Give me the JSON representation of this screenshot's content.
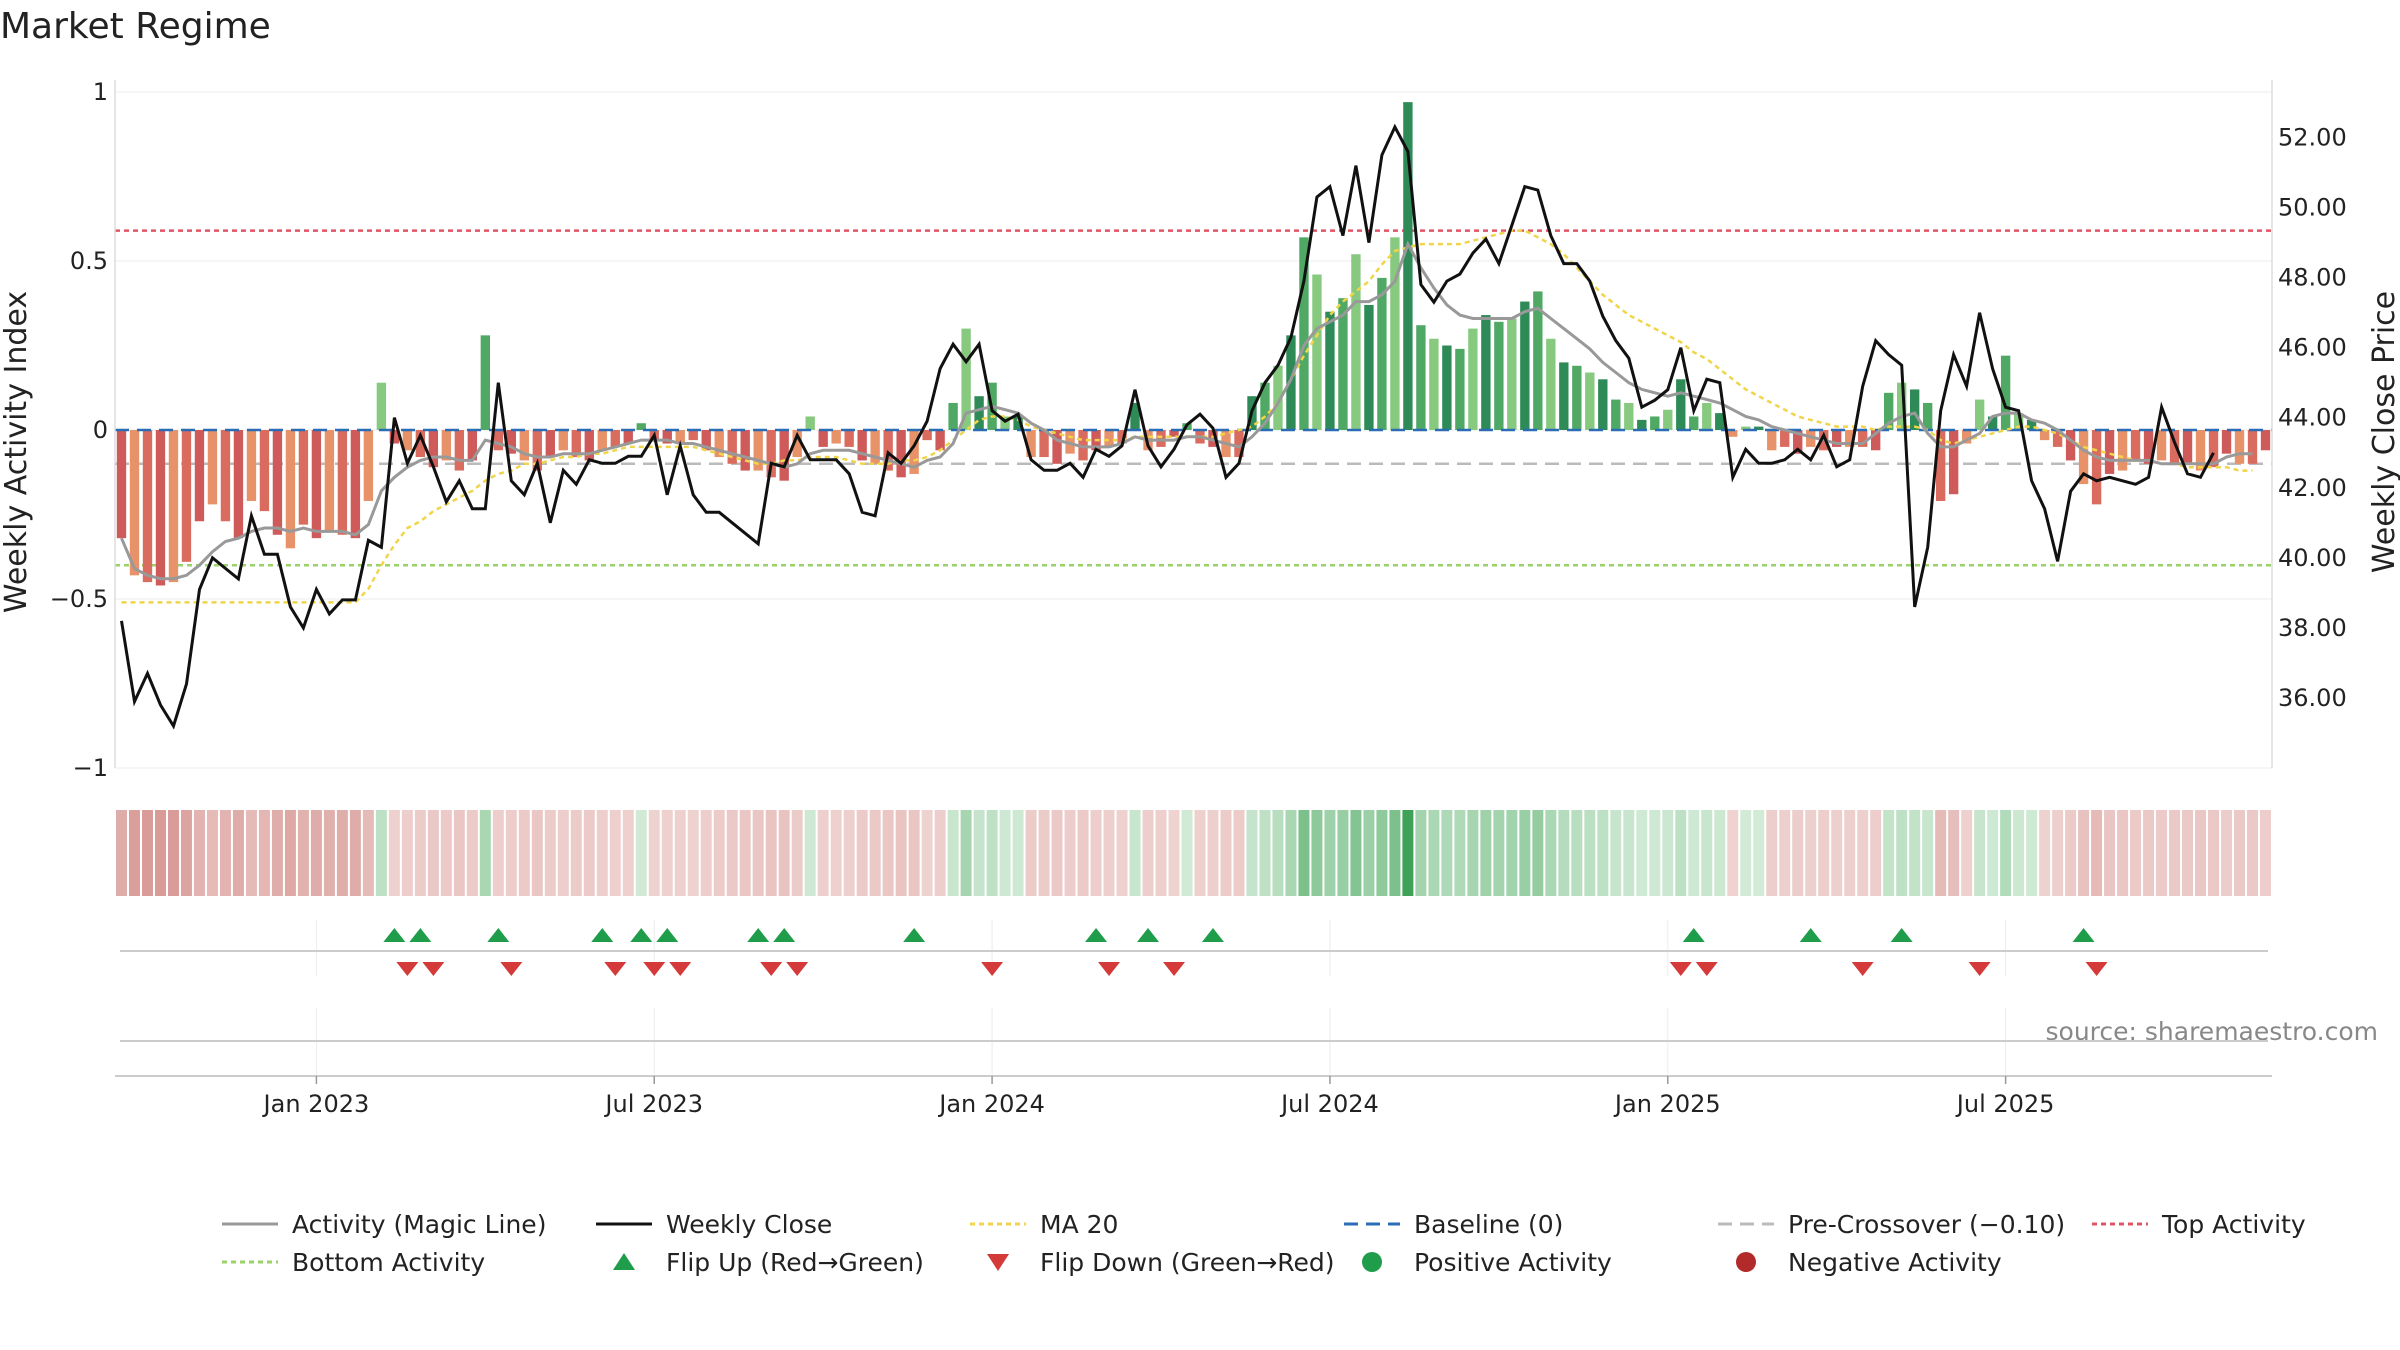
{
  "chart_data": {
    "type": "bar",
    "title": "Market Regime",
    "ylabel": "Weekly Activity Index",
    "y2label": "Weekly Close Price",
    "source": "source: sharemaestro.com",
    "ylim": [
      -1,
      1
    ],
    "y2lim": [
      34,
      53.3
    ],
    "y_ticks": [
      {
        "v": 1,
        "label": "1"
      },
      {
        "v": 0.5,
        "label": "0.5"
      },
      {
        "v": 0,
        "label": "0"
      },
      {
        "v": -0.5,
        "label": "−0.5"
      },
      {
        "v": -1,
        "label": "−1"
      }
    ],
    "y2_ticks": [
      {
        "v": 52,
        "label": "52.00"
      },
      {
        "v": 50,
        "label": "50.00"
      },
      {
        "v": 48,
        "label": "48.00"
      },
      {
        "v": 46,
        "label": "46.00"
      },
      {
        "v": 44,
        "label": "44.00"
      },
      {
        "v": 42,
        "label": "42.00"
      },
      {
        "v": 40,
        "label": "40.00"
      },
      {
        "v": 38,
        "label": "38.00"
      },
      {
        "v": 36,
        "label": "36.00"
      }
    ],
    "x_ticks": [
      {
        "i": 15,
        "label": "Jan 2023"
      },
      {
        "i": 41,
        "label": "Jul 2023"
      },
      {
        "i": 67,
        "label": "Jan 2024"
      },
      {
        "i": 93,
        "label": "Jul 2024"
      },
      {
        "i": 119,
        "label": "Jan 2025"
      },
      {
        "i": 145,
        "label": "Jul 2025"
      }
    ],
    "reference_lines": {
      "top": 0.59,
      "bottom": -0.4,
      "pre_crossover": -0.1,
      "baseline": 0
    },
    "activity": [
      -0.32,
      -0.43,
      -0.45,
      -0.46,
      -0.45,
      -0.39,
      -0.27,
      -0.22,
      -0.27,
      -0.32,
      -0.21,
      -0.24,
      -0.31,
      -0.35,
      -0.28,
      -0.32,
      -0.3,
      -0.31,
      -0.32,
      -0.21,
      0.14,
      -0.04,
      -0.06,
      -0.08,
      -0.11,
      -0.09,
      -0.12,
      -0.09,
      0.28,
      -0.06,
      -0.07,
      -0.09,
      -0.12,
      -0.08,
      -0.06,
      -0.08,
      -0.09,
      -0.06,
      -0.05,
      -0.04,
      0.02,
      -0.03,
      -0.04,
      -0.04,
      -0.03,
      -0.06,
      -0.08,
      -0.1,
      -0.12,
      -0.12,
      -0.14,
      -0.15,
      -0.08,
      0.04,
      -0.05,
      -0.04,
      -0.05,
      -0.09,
      -0.1,
      -0.12,
      -0.14,
      -0.13,
      -0.03,
      -0.06,
      0.08,
      0.3,
      0.1,
      0.14,
      0.04,
      0.04,
      -0.08,
      -0.08,
      -0.1,
      -0.07,
      -0.09,
      -0.06,
      -0.05,
      -0.04,
      0.08,
      -0.06,
      -0.05,
      -0.02,
      0.02,
      -0.04,
      -0.05,
      -0.08,
      -0.08,
      0.1,
      0.14,
      0.19,
      0.28,
      0.57,
      0.46,
      0.35,
      0.39,
      0.52,
      0.37,
      0.45,
      0.57,
      0.97,
      0.31,
      0.27,
      0.25,
      0.24,
      0.3,
      0.34,
      0.32,
      0.33,
      0.38,
      0.41,
      0.27,
      0.2,
      0.19,
      0.17,
      0.15,
      0.09,
      0.08,
      0.03,
      0.04,
      0.06,
      0.15,
      0.04,
      0.08,
      0.05,
      -0.02,
      0.01,
      0.01,
      -0.06,
      -0.05,
      -0.07,
      -0.05,
      -0.06,
      -0.05,
      -0.05,
      -0.05,
      -0.06,
      0.11,
      0.14,
      0.12,
      0.08,
      -0.21,
      -0.19,
      -0.04,
      0.09,
      0.04,
      0.22,
      0.05,
      0.03,
      -0.03,
      -0.05,
      -0.09,
      -0.16,
      -0.22,
      -0.13,
      -0.12,
      -0.09,
      -0.1,
      -0.09,
      -0.1,
      -0.1,
      -0.12,
      -0.11,
      -0.07,
      -0.1,
      -0.1,
      -0.06
    ],
    "magic_line": [
      -0.32,
      -0.41,
      -0.43,
      -0.44,
      -0.44,
      -0.43,
      -0.4,
      -0.36,
      -0.33,
      -0.32,
      -0.3,
      -0.29,
      -0.29,
      -0.3,
      -0.29,
      -0.3,
      -0.3,
      -0.3,
      -0.31,
      -0.28,
      -0.18,
      -0.14,
      -0.11,
      -0.09,
      -0.08,
      -0.08,
      -0.09,
      -0.09,
      -0.03,
      -0.04,
      -0.05,
      -0.07,
      -0.08,
      -0.08,
      -0.07,
      -0.07,
      -0.07,
      -0.06,
      -0.05,
      -0.04,
      -0.03,
      -0.03,
      -0.03,
      -0.04,
      -0.04,
      -0.05,
      -0.06,
      -0.07,
      -0.08,
      -0.09,
      -0.1,
      -0.11,
      -0.1,
      -0.07,
      -0.06,
      -0.06,
      -0.06,
      -0.07,
      -0.08,
      -0.09,
      -0.1,
      -0.11,
      -0.09,
      -0.08,
      -0.04,
      0.05,
      0.06,
      0.07,
      0.06,
      0.05,
      0.02,
      0,
      -0.03,
      -0.04,
      -0.05,
      -0.05,
      -0.05,
      -0.04,
      -0.02,
      -0.03,
      -0.03,
      -0.03,
      -0.02,
      -0.02,
      -0.03,
      -0.04,
      -0.05,
      -0.02,
      0.02,
      0.08,
      0.15,
      0.25,
      0.3,
      0.32,
      0.34,
      0.38,
      0.38,
      0.4,
      0.44,
      0.55,
      0.48,
      0.42,
      0.37,
      0.34,
      0.33,
      0.33,
      0.33,
      0.33,
      0.35,
      0.36,
      0.33,
      0.3,
      0.27,
      0.24,
      0.2,
      0.17,
      0.14,
      0.12,
      0.11,
      0.1,
      0.11,
      0.1,
      0.09,
      0.08,
      0.06,
      0.04,
      0.03,
      0.01,
      0,
      -0.01,
      -0.02,
      -0.03,
      -0.04,
      -0.04,
      -0.04,
      -0.01,
      0.02,
      0.04,
      0.05,
      -0.01,
      -0.05,
      -0.05,
      -0.03,
      -0.01,
      0.04,
      0.05,
      0.05,
      0.03,
      0.02,
      0,
      -0.03,
      -0.06,
      -0.08,
      -0.09,
      -0.09,
      -0.09,
      -0.09,
      -0.1,
      -0.1,
      -0.1,
      -0.1,
      -0.1,
      -0.08,
      -0.07,
      -0.07
    ],
    "ma20": [
      -0.51,
      -0.51,
      -0.51,
      -0.51,
      -0.51,
      -0.51,
      -0.51,
      -0.51,
      -0.51,
      -0.51,
      -0.51,
      -0.51,
      -0.51,
      -0.51,
      -0.51,
      -0.51,
      -0.51,
      -0.51,
      -0.51,
      -0.47,
      -0.4,
      -0.34,
      -0.29,
      -0.27,
      -0.24,
      -0.22,
      -0.2,
      -0.18,
      -0.15,
      -0.13,
      -0.12,
      -0.1,
      -0.1,
      -0.09,
      -0.08,
      -0.08,
      -0.07,
      -0.07,
      -0.06,
      -0.05,
      -0.05,
      -0.05,
      -0.05,
      -0.05,
      -0.05,
      -0.06,
      -0.07,
      -0.08,
      -0.09,
      -0.1,
      -0.1,
      -0.09,
      -0.09,
      -0.08,
      -0.08,
      -0.08,
      -0.09,
      -0.1,
      -0.1,
      -0.1,
      -0.09,
      -0.09,
      -0.08,
      -0.06,
      -0.03,
      0,
      0.03,
      0.04,
      0.04,
      0.03,
      0.01,
      0,
      -0.01,
      -0.02,
      -0.03,
      -0.03,
      -0.03,
      -0.03,
      -0.02,
      -0.02,
      -0.02,
      -0.02,
      -0.02,
      -0.02,
      -0.02,
      -0.01,
      0,
      0.01,
      0.04,
      0.08,
      0.15,
      0.22,
      0.28,
      0.34,
      0.38,
      0.41,
      0.44,
      0.49,
      0.53,
      0.54,
      0.55,
      0.55,
      0.55,
      0.55,
      0.56,
      0.57,
      0.58,
      0.59,
      0.59,
      0.57,
      0.55,
      0.52,
      0.48,
      0.44,
      0.4,
      0.37,
      0.34,
      0.32,
      0.3,
      0.28,
      0.26,
      0.23,
      0.21,
      0.18,
      0.15,
      0.12,
      0.1,
      0.08,
      0.06,
      0.04,
      0.03,
      0.02,
      0.01,
      0.01,
      0.01,
      0,
      0.01,
      0.01,
      0.01,
      0,
      -0.03,
      -0.04,
      -0.03,
      -0.02,
      -0.01,
      0,
      0.01,
      0.01,
      0,
      -0.01,
      -0.03,
      -0.05,
      -0.06,
      -0.07,
      -0.08,
      -0.09,
      -0.09,
      -0.1,
      -0.1,
      -0.11,
      -0.11,
      -0.11,
      -0.11,
      -0.12,
      -0.12
    ],
    "close": [
      38.2,
      35.9,
      36.7,
      35.8,
      35.2,
      36.4,
      39.1,
      40,
      39.7,
      39.4,
      41.2,
      40.1,
      40.1,
      38.6,
      38,
      39.1,
      38.4,
      38.8,
      38.8,
      40.5,
      40.3,
      44,
      42.7,
      43.5,
      42.6,
      41.6,
      42.2,
      41.4,
      41.4,
      45,
      42.2,
      41.8,
      42.7,
      41,
      42.5,
      42.1,
      42.8,
      42.7,
      42.7,
      42.9,
      42.9,
      43.5,
      41.8,
      43.2,
      41.8,
      41.3,
      41.3,
      41,
      40.7,
      40.4,
      42.7,
      42.6,
      43.5,
      42.8,
      42.8,
      42.8,
      42.4,
      41.3,
      41.2,
      43,
      42.7,
      43.2,
      43.9,
      45.4,
      46.1,
      45.6,
      46.1,
      44.2,
      43.9,
      44.1,
      42.8,
      42.5,
      42.5,
      42.7,
      42.3,
      43.1,
      42.9,
      43.2,
      44.8,
      43.2,
      42.6,
      43.1,
      43.8,
      44.1,
      43.7,
      42.3,
      42.7,
      44.2,
      45,
      45.5,
      46.3,
      47.9,
      50.3,
      50.6,
      49.2,
      51.2,
      49,
      51.5,
      52.3,
      51.6,
      47.8,
      47.3,
      47.9,
      48.1,
      48.7,
      49.1,
      48.4,
      49.5,
      50.6,
      50.5,
      49.2,
      48.4,
      48.4,
      47.9,
      46.9,
      46.2,
      45.7,
      44.3,
      44.5,
      44.8,
      46,
      44.2,
      45.1,
      45,
      42.3,
      43.1,
      42.7,
      42.7,
      42.8,
      43.1,
      42.8,
      43.5,
      42.6,
      42.8,
      44.9,
      46.2,
      45.8,
      45.5,
      38.6,
      40.3,
      44.2,
      45.8,
      44.9,
      47,
      45.4,
      44.3,
      44.2,
      42.2,
      41.4,
      39.9,
      41.9,
      42.4,
      42.2,
      42.3,
      42.2,
      42.1,
      42.3,
      44.3,
      43.3,
      42.4,
      42.3,
      43
    ],
    "flip_up": [
      21,
      23,
      29,
      37,
      40,
      42,
      49,
      51,
      61,
      75,
      79,
      84,
      121,
      130,
      137,
      151
    ],
    "flip_down": [
      22,
      24,
      30,
      38,
      41,
      43,
      50,
      52,
      67,
      76,
      81,
      120,
      122,
      134,
      143,
      152
    ],
    "legend": [
      {
        "label": "Activity (Magic Line)",
        "kind": "line",
        "color": "#999999",
        "dash": ""
      },
      {
        "label": "Weekly Close",
        "kind": "line",
        "color": "#111111",
        "dash": ""
      },
      {
        "label": "MA 20",
        "kind": "line",
        "color": "#f0d54a",
        "dash": "5,4"
      },
      {
        "label": "Baseline (0)",
        "kind": "line",
        "color": "#2a6db5",
        "dash": "14,8"
      },
      {
        "label": "Pre-Crossover (−0.10)",
        "kind": "line",
        "color": "#bbbbbb",
        "dash": "14,8"
      },
      {
        "label": "Top Activity",
        "kind": "line",
        "color": "#e15566",
        "dash": "5,4"
      },
      {
        "label": "Bottom Activity",
        "kind": "line",
        "color": "#9ad36a",
        "dash": "5,4"
      },
      {
        "label": "Flip Up (Red→Green)",
        "kind": "triangle-up",
        "color": "#1f9d4a",
        "dash": ""
      },
      {
        "label": "Flip Down (Green→Red)",
        "kind": "triangle-down",
        "color": "#d43a3a",
        "dash": ""
      },
      {
        "label": "Positive Activity",
        "kind": "dot",
        "color": "#1f9d4a",
        "dash": ""
      },
      {
        "label": "Negative Activity",
        "kind": "dot",
        "color": "#b32a2a",
        "dash": ""
      }
    ]
  }
}
